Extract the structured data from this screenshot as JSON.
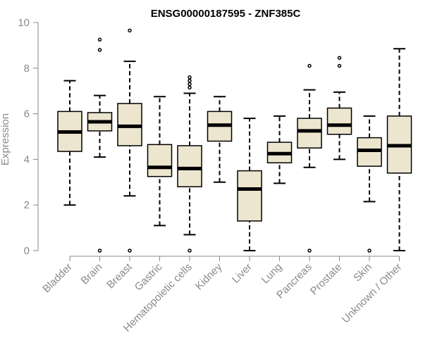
{
  "chart_data": {
    "type": "boxplot",
    "title": "ENSG00000187595 - ZNF385C",
    "xlabel": "",
    "ylabel": "Expression",
    "ylim": [
      0,
      10
    ],
    "yticks": [
      0,
      2,
      4,
      6,
      8,
      10
    ],
    "box_color": "#ede6cf",
    "categories": [
      "Bladder",
      "Brain",
      "Breast",
      "Gastric",
      "Hematopoietic cells",
      "Kidney",
      "Liver",
      "Lung",
      "Pancreas",
      "Prostate",
      "Skin",
      "Unknown / Other"
    ],
    "series": [
      {
        "name": "Bladder",
        "whisker_low": 2.0,
        "q1": 4.35,
        "median": 5.2,
        "q3": 6.1,
        "whisker_high": 7.45,
        "outliers": []
      },
      {
        "name": "Brain",
        "whisker_low": 4.1,
        "q1": 5.25,
        "median": 5.65,
        "q3": 6.05,
        "whisker_high": 6.8,
        "outliers": [
          0.0,
          8.8,
          9.25
        ]
      },
      {
        "name": "Breast",
        "whisker_low": 2.4,
        "q1": 4.6,
        "median": 5.45,
        "q3": 6.45,
        "whisker_high": 8.3,
        "outliers": [
          0.0,
          9.65
        ]
      },
      {
        "name": "Gastric",
        "whisker_low": 1.1,
        "q1": 3.25,
        "median": 3.65,
        "q3": 4.65,
        "whisker_high": 6.75,
        "outliers": []
      },
      {
        "name": "Hematopoietic cells",
        "whisker_low": 0.7,
        "q1": 2.8,
        "median": 3.6,
        "q3": 4.6,
        "whisker_high": 6.9,
        "outliers": [
          0.0,
          7.15,
          7.3,
          7.45,
          7.6
        ]
      },
      {
        "name": "Kidney",
        "whisker_low": 3.0,
        "q1": 4.8,
        "median": 5.5,
        "q3": 6.1,
        "whisker_high": 6.75,
        "outliers": []
      },
      {
        "name": "Liver",
        "whisker_low": 0.0,
        "q1": 1.3,
        "median": 2.7,
        "q3": 3.5,
        "whisker_high": 5.8,
        "outliers": []
      },
      {
        "name": "Lung",
        "whisker_low": 2.95,
        "q1": 3.85,
        "median": 4.25,
        "q3": 4.75,
        "whisker_high": 5.9,
        "outliers": []
      },
      {
        "name": "Pancreas",
        "whisker_low": 3.65,
        "q1": 4.5,
        "median": 5.25,
        "q3": 5.8,
        "whisker_high": 7.05,
        "outliers": [
          0.0,
          8.1
        ]
      },
      {
        "name": "Prostate",
        "whisker_low": 4.0,
        "q1": 5.1,
        "median": 5.5,
        "q3": 6.25,
        "whisker_high": 6.95,
        "outliers": [
          8.1,
          8.45
        ]
      },
      {
        "name": "Skin",
        "whisker_low": 2.15,
        "q1": 3.7,
        "median": 4.4,
        "q3": 4.95,
        "whisker_high": 5.9,
        "outliers": [
          0.0
        ]
      },
      {
        "name": "Unknown / Other",
        "whisker_low": 0.0,
        "q1": 3.4,
        "median": 4.6,
        "q3": 5.9,
        "whisker_high": 8.85,
        "outliers": []
      }
    ]
  }
}
